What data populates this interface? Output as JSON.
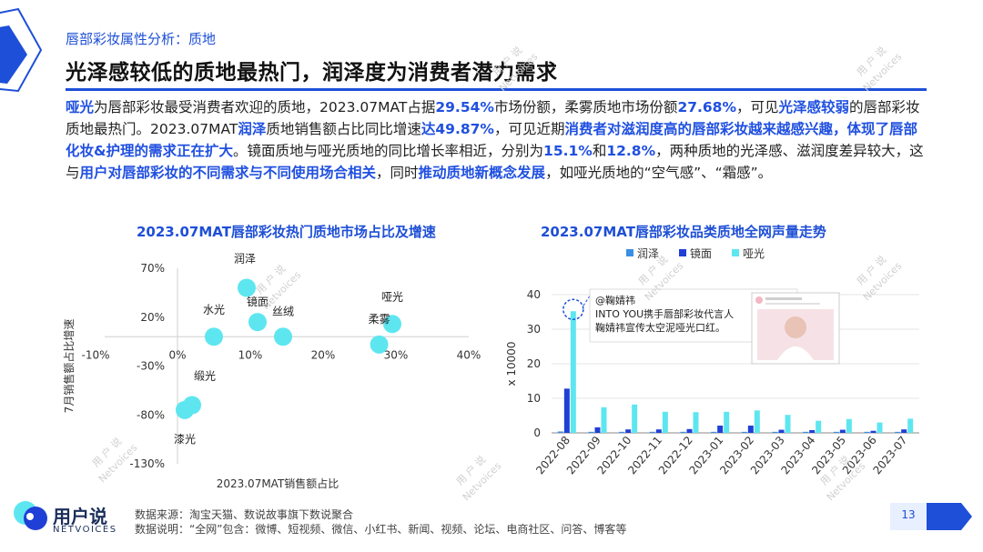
{
  "header": {
    "section_label": "唇部彩妆属性分析：质地",
    "title": "光泽感较低的质地最热门，润泽度为消费者潜力需求"
  },
  "paragraph": [
    {
      "t": "哑光",
      "b": true
    },
    {
      "t": "为唇部彩妆最受消费者欢迎的质地，2023.07MAT占据",
      "b": false
    },
    {
      "t": "29.54%",
      "b": true
    },
    {
      "t": "市场份额，柔雾质地市场份额",
      "b": false
    },
    {
      "t": "27.68%",
      "b": true
    },
    {
      "t": "，可见",
      "b": false
    },
    {
      "t": "光泽感较弱",
      "b": true
    },
    {
      "t": "的唇部彩妆质地最热门。2023.07MAT",
      "b": false
    },
    {
      "t": "润泽",
      "b": true
    },
    {
      "t": "质地销售额占比同比增速",
      "b": false
    },
    {
      "t": "达49.87%",
      "b": true
    },
    {
      "t": "，可见近期",
      "b": false
    },
    {
      "t": "消费者对滋润度高的唇部彩妆越来越感兴趣，体现了唇部化妆&护理的需求正在扩大",
      "b": true
    },
    {
      "t": "。镜面质地与哑光质地的同比增长率相近，分别为",
      "b": false
    },
    {
      "t": "15.1%",
      "b": true
    },
    {
      "t": "和",
      "b": false
    },
    {
      "t": "12.8%",
      "b": true
    },
    {
      "t": "，两种质地的光泽感、滋润度差异较大，这与",
      "b": false
    },
    {
      "t": "用户对唇部彩妆的不同需求与不同使用场合相关",
      "b": true
    },
    {
      "t": "，同时",
      "b": false
    },
    {
      "t": "推动质地新概念发展",
      "b": true
    },
    {
      "t": "，如哑光质地的“空气感”、“霜感”。",
      "b": false
    }
  ],
  "left_chart_title": "2023.07MAT唇部彩妆热门质地市场占比及增速",
  "right_chart_title": "2023.07MAT唇部彩妆品类质地全网声量走势",
  "chart_data": [
    {
      "type": "scatter",
      "title": "2023.07MAT唇部彩妆热门质地市场占比及增速",
      "xlabel": "2023.07MAT销售额占比",
      "ylabel": "7月销售额占比增速",
      "x_ticks": [
        "-10%",
        "0%",
        "10%",
        "20%",
        "30%",
        "40%"
      ],
      "y_ticks": [
        "70%",
        "20%",
        "-30%",
        "-80%",
        "-130%"
      ],
      "xlim": [
        -10,
        40
      ],
      "ylim": [
        -130,
        70
      ],
      "points": [
        {
          "label": "润泽",
          "x": 9.5,
          "y": 50
        },
        {
          "label": "镜面",
          "x": 11,
          "y": 15
        },
        {
          "label": "水光",
          "x": 5,
          "y": 0
        },
        {
          "label": "丝绒",
          "x": 14.5,
          "y": 0
        },
        {
          "label": "哑光",
          "x": 29.5,
          "y": 13
        },
        {
          "label": "柔雾",
          "x": 27.7,
          "y": -8
        },
        {
          "label": "缎光",
          "x": 2,
          "y": -70
        },
        {
          "label": "漆光",
          "x": 1,
          "y": -75
        }
      ]
    },
    {
      "type": "bar",
      "title": "2023.07MAT唇部彩妆品类质地全网声量走势",
      "ylabel": "x 10000",
      "ylim": [
        0,
        40
      ],
      "y_ticks": [
        "0",
        "10",
        "20",
        "30",
        "40"
      ],
      "categories": [
        "2022-08",
        "2022-09",
        "2022-10",
        "2022-11",
        "2022-12",
        "2023-01",
        "2023-02",
        "2023-03",
        "2023-04",
        "2023-05",
        "2023-06",
        "2023-07"
      ],
      "series": [
        {
          "name": "润泽",
          "color": "#3a8ee6",
          "values": [
            0.4,
            0.3,
            0.3,
            0.3,
            0.3,
            0.3,
            0.3,
            0.3,
            0.3,
            0.3,
            0.3,
            0.3
          ]
        },
        {
          "name": "镜面",
          "color": "#1f3fd6",
          "values": [
            12.8,
            1.6,
            1.0,
            1.0,
            1.1,
            2.1,
            2.1,
            0.9,
            0.8,
            0.9,
            0.6,
            1.0
          ]
        },
        {
          "name": "哑光",
          "color": "#5ee6f0",
          "values": [
            35.2,
            7.4,
            8.2,
            6.1,
            6.0,
            6.1,
            6.5,
            5.2,
            3.5,
            4.0,
            3.0,
            4.1
          ]
        }
      ],
      "annotation": {
        "lines": [
          "@鞠婧祎",
          "INTO YOU携手唇部彩妆代言人",
          "鞠婧祎宣传太空泥哑光口红。"
        ]
      }
    }
  ],
  "footer": {
    "logo_text": "用户说",
    "logo_sub": "NETVOICES",
    "source": "数据来源：淘宝天猫、数说故事旗下数说聚合",
    "note": "数据说明：“全网”包含：微博、短视频、微信、小红书、新闻、视频、论坛、电商社区、问答、博客等",
    "page": "13"
  },
  "colors": {
    "accent": "#1d4fd8",
    "scatter_point": "#5ee6f0",
    "highlight": "#2050e0"
  },
  "watermark": {
    "cn": "用 户 说",
    "en": "Netvoices"
  }
}
